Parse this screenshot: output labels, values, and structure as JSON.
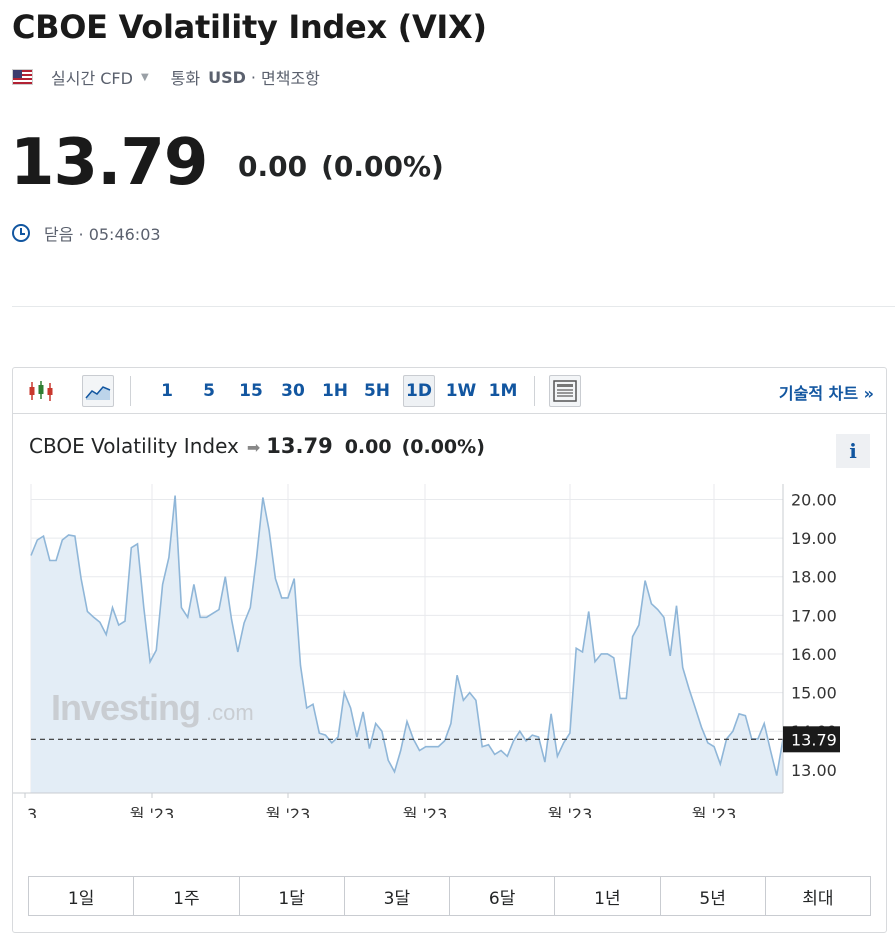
{
  "header": {
    "title": "CBOE Volatility Index (VIX)",
    "market_type": "실시간 CFD",
    "currency_label": "통화",
    "currency": "USD",
    "separator": "·",
    "disclaimer": "면책조항",
    "flag_icon": "us-flag-icon"
  },
  "quote": {
    "price": "13.79",
    "change": "0.00",
    "change_pct": "(0.00%)",
    "status": "닫음 · 05:46:03"
  },
  "toolbar": {
    "intervals": [
      "1",
      "5",
      "15",
      "30",
      "1H",
      "5H",
      "1D",
      "1W",
      "1M"
    ],
    "active_interval": "1D",
    "technical_chart": "기술적 차트 »"
  },
  "chart_legend": {
    "name": "CBOE Volatility Index",
    "price": "13.79",
    "change": "0.00",
    "change_pct": "(0.00%)",
    "info": "i"
  },
  "watermark": {
    "brand": "Investing",
    "suffix": ".com"
  },
  "chart_data": {
    "type": "area",
    "title": "CBOE Volatility Index",
    "y_ticks": [
      "20.00",
      "19.00",
      "18.00",
      "17.00",
      "16.00",
      "15.00",
      "14.00",
      "13.00"
    ],
    "ylim": [
      12.4,
      20.4
    ],
    "x_tick_labels": [
      "3",
      "월 '23",
      "월 '23",
      "월 '23",
      "월 '23",
      "월 '23"
    ],
    "current_value": 13.79,
    "current_label": "13.79",
    "grid": true,
    "colors": {
      "line": "#8fb6d8",
      "fill": "#e3edf6",
      "grid": "#e8eaed",
      "label_bg": "#1a1a1a"
    },
    "series": [
      {
        "values": [
          18.55,
          18.95,
          19.05,
          18.42,
          18.42,
          18.95,
          19.08,
          19.05,
          17.95,
          17.1,
          16.95,
          16.82,
          16.5,
          17.2,
          16.75,
          16.85,
          18.75,
          18.85,
          17.2,
          15.8,
          16.1,
          17.8,
          18.5,
          20.1,
          17.2,
          16.95,
          17.8,
          16.95,
          16.95,
          17.05,
          17.15,
          18.0,
          16.9,
          16.05,
          16.8,
          17.2,
          18.5,
          20.05,
          19.2,
          17.95,
          17.45,
          17.45,
          17.95,
          15.7,
          14.6,
          14.7,
          13.95,
          13.9,
          13.7,
          13.85,
          15.0,
          14.6,
          13.85,
          14.5,
          13.55,
          14.2,
          14.0,
          13.25,
          12.95,
          13.5,
          14.25,
          13.8,
          13.5,
          13.6,
          13.6,
          13.6,
          13.75,
          14.2,
          15.45,
          14.8,
          15.0,
          14.8,
          13.6,
          13.65,
          13.4,
          13.5,
          13.35,
          13.75,
          14.0,
          13.75,
          13.9,
          13.85,
          13.2,
          14.45,
          13.35,
          13.7,
          13.95,
          16.15,
          16.05,
          17.1,
          15.8,
          16.0,
          16.0,
          15.9,
          14.85,
          14.85,
          16.45,
          16.75,
          17.9,
          17.3,
          17.15,
          16.95,
          15.95,
          17.25,
          15.65,
          15.1,
          14.6,
          14.1,
          13.7,
          13.6,
          13.15,
          13.8,
          14.0,
          14.45,
          14.4,
          13.8,
          13.8,
          14.2,
          13.5,
          12.85,
          13.79
        ]
      }
    ]
  },
  "ranges": [
    "1일",
    "1주",
    "1달",
    "3달",
    "6달",
    "1년",
    "5년",
    "최대"
  ]
}
